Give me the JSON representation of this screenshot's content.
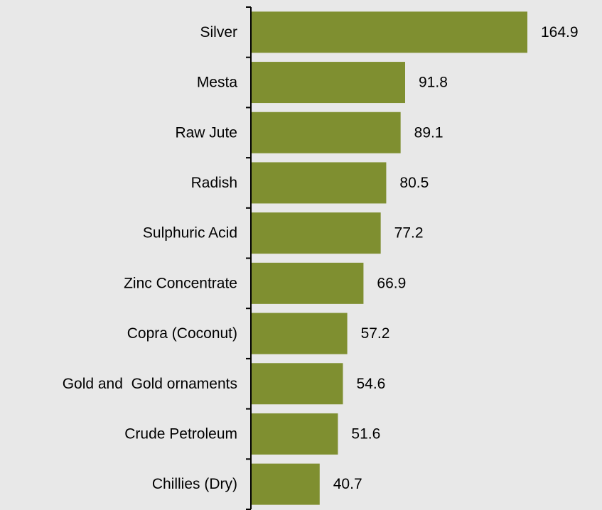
{
  "chart_data": {
    "type": "bar",
    "orientation": "horizontal",
    "title": "",
    "xlabel": "",
    "ylabel": "",
    "categories": [
      "Silver",
      "Mesta",
      "Raw Jute",
      "Radish",
      "Sulphuric Acid",
      "Zinc Concentrate",
      "Copra (Coconut)",
      "Gold and  Gold ornaments",
      "Crude Petroleum",
      "Chillies (Dry)"
    ],
    "values": [
      164.9,
      91.8,
      89.1,
      80.5,
      77.2,
      66.9,
      57.2,
      54.6,
      51.6,
      40.7
    ],
    "value_labels": [
      "164.9",
      "91.8",
      "89.1",
      "80.5",
      "77.2",
      "66.9",
      "57.2",
      "54.6",
      "51.6",
      "40.7"
    ],
    "xlim": [
      0,
      170
    ],
    "grid": false,
    "legend": "none",
    "colors": {
      "bar": "#7f8f30",
      "background": "#e8e8e8",
      "axis": "#000000",
      "text": "#000000"
    }
  }
}
